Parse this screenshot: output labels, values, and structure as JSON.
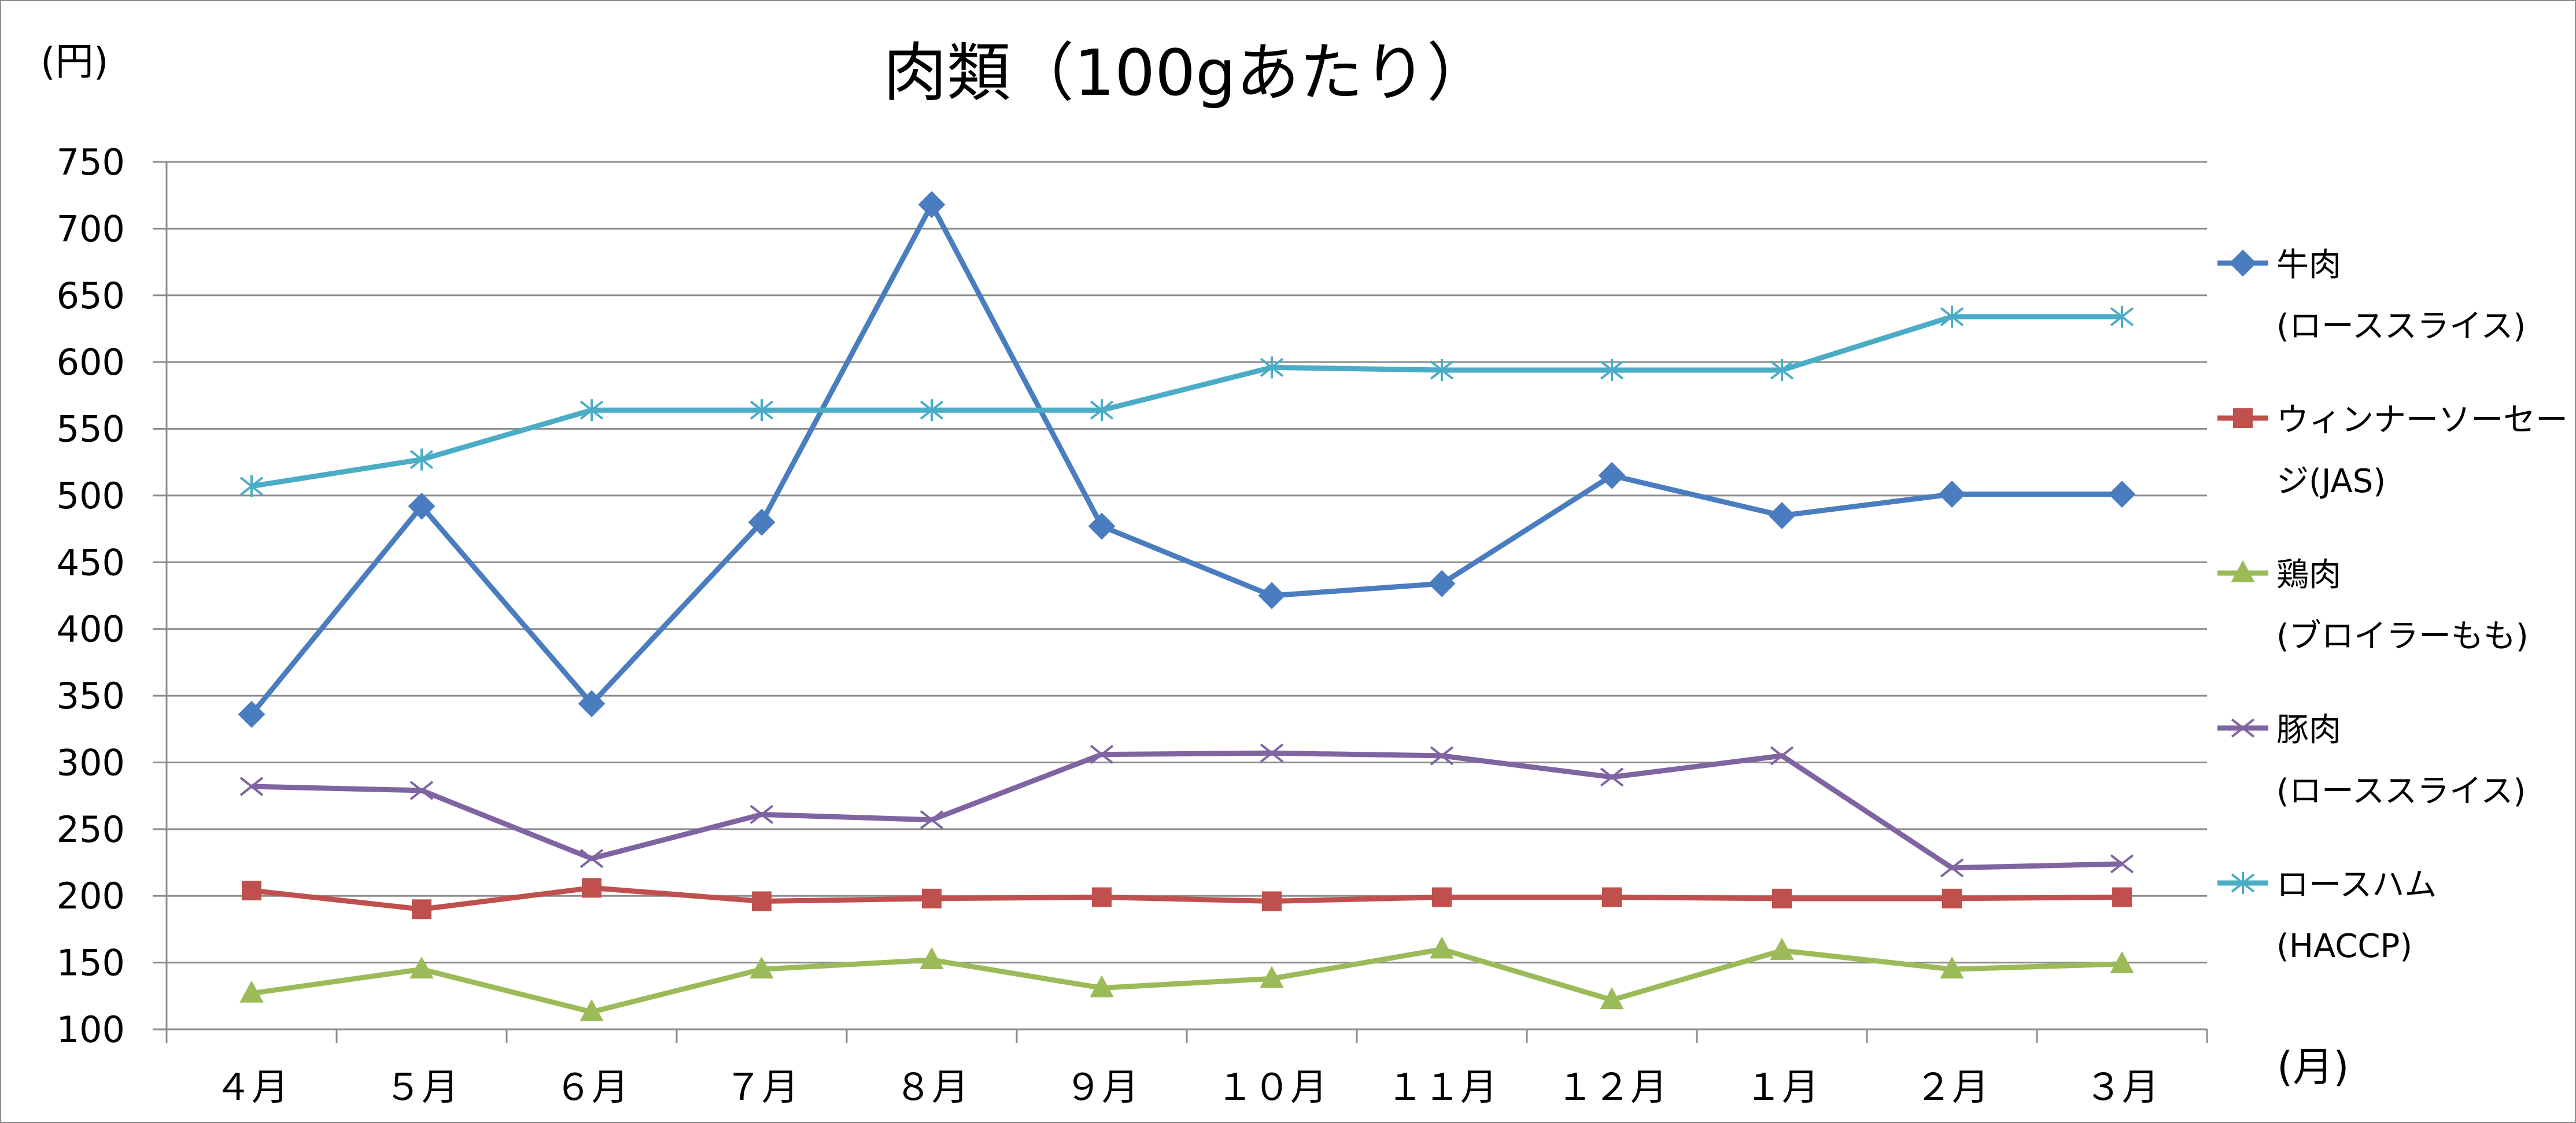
{
  "chart_data": {
    "type": "line",
    "title": "肉類（100gあたり）",
    "xlabel": "(月)",
    "ylabel": "(円)",
    "ylim": [
      100,
      750
    ],
    "ytick_step": 50,
    "yticks": [
      "750",
      "700",
      "650",
      "600",
      "550",
      "500",
      "450",
      "400",
      "350",
      "300",
      "250",
      "200",
      "150",
      "100"
    ],
    "grid": true,
    "legend_position": "right",
    "categories": [
      "４月",
      "５月",
      "６月",
      "７月",
      "８月",
      "９月",
      "１０月",
      "１１月",
      "１２月",
      "１月",
      "２月",
      "３月"
    ],
    "series": [
      {
        "name": "牛肉",
        "name_line2": "(ローススライス)",
        "color": "#4a7dbf",
        "marker": "diamond",
        "values": [
          336,
          492,
          344,
          480,
          718,
          477,
          425,
          434,
          515,
          485,
          501,
          501
        ]
      },
      {
        "name": "ウィンナーソーセー",
        "name_line2": "ジ(JAS)",
        "color": "#c0504d",
        "marker": "square",
        "values": [
          204,
          190,
          206,
          196,
          198,
          199,
          196,
          199,
          199,
          198,
          198,
          199
        ]
      },
      {
        "name": "鶏肉",
        "name_line2": "(ブロイラーもも)",
        "color": "#9bbb59",
        "marker": "triangle",
        "values": [
          127,
          145,
          113,
          145,
          152,
          131,
          138,
          160,
          122,
          159,
          145,
          149
        ]
      },
      {
        "name": "豚肉",
        "name_line2": "(ローススライス)",
        "color": "#8064a2",
        "marker": "x",
        "values": [
          282,
          279,
          228,
          261,
          257,
          306,
          307,
          305,
          289,
          305,
          221,
          224
        ]
      },
      {
        "name": "ロースハム",
        "name_line2": "(HACCP)",
        "color": "#4bacc6",
        "marker": "star",
        "values": [
          507,
          527,
          564,
          564,
          564,
          564,
          596,
          594,
          594,
          594,
          634,
          634
        ]
      }
    ]
  }
}
